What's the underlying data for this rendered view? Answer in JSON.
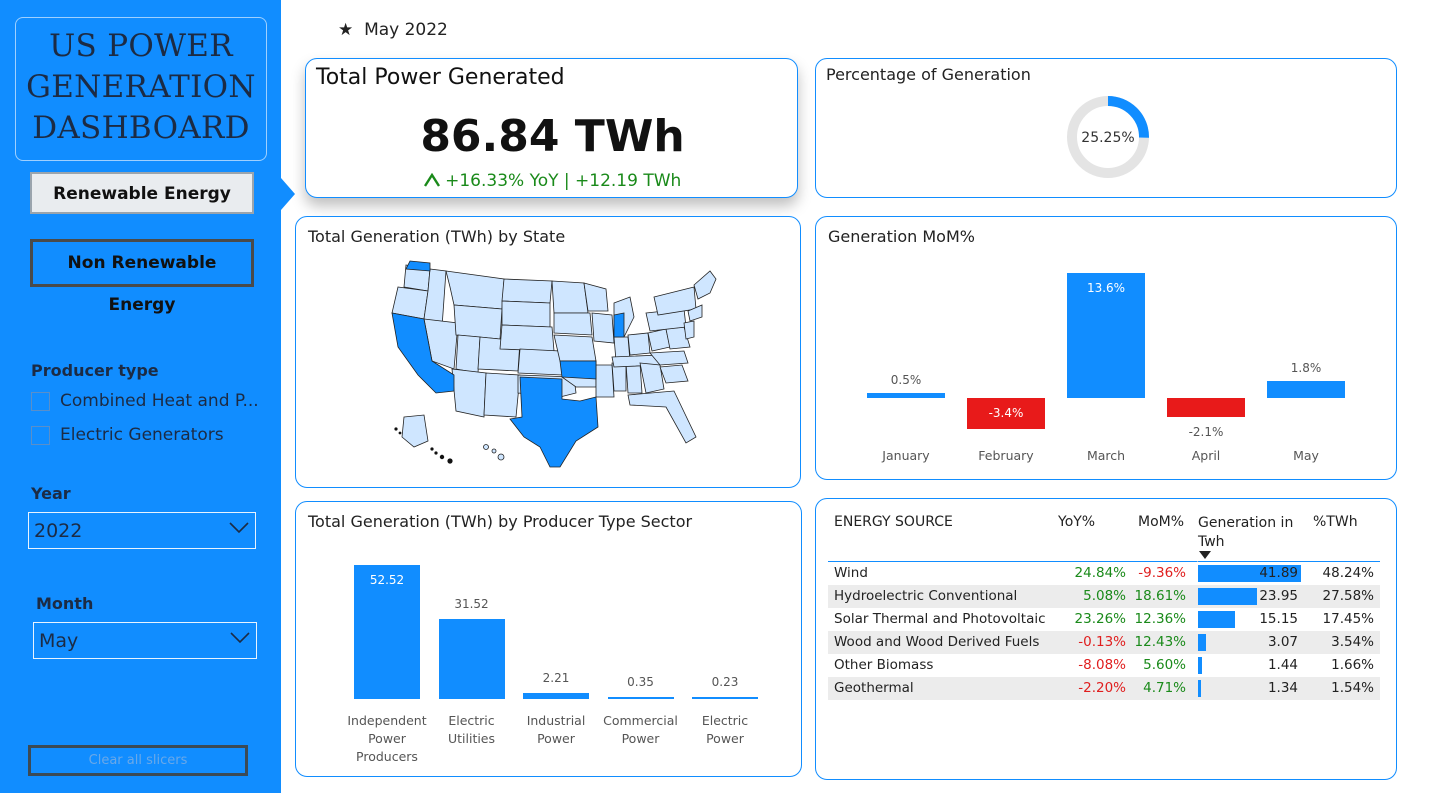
{
  "sidebar": {
    "title_lines": [
      "US POWER",
      "GENERATION",
      "DASHBOARD"
    ],
    "buttons": {
      "renewable": "Renewable Energy",
      "non_renewable": "Non Renewable Energy"
    },
    "producer_type": {
      "label": "Producer type",
      "options": [
        "Combined Heat and P...",
        "Electric Generators"
      ]
    },
    "year": {
      "label": "Year",
      "value": "2022"
    },
    "month": {
      "label": "Month",
      "value": "May"
    },
    "clear_label": "Clear all slicers"
  },
  "header": {
    "star": "★",
    "date": "May 2022"
  },
  "kpi": {
    "title": "Total Power Generated",
    "value": "86.84 TWh",
    "delta": "+16.33% YoY | +12.19 TWh"
  },
  "percentage": {
    "title": "Percentage of Generation",
    "value": "25.25%",
    "fraction": 0.2525
  },
  "map": {
    "title": "Total Generation (TWh) by State"
  },
  "mom": {
    "title": "Generation MoM%",
    "chart_data": {
      "type": "bar",
      "categories": [
        "January",
        "February",
        "March",
        "April",
        "May"
      ],
      "values": [
        0.5,
        -3.4,
        13.6,
        -2.1,
        1.8
      ],
      "labels": [
        "0.5%",
        "-3.4%",
        "13.6%",
        "-2.1%",
        "1.8%"
      ]
    }
  },
  "sector": {
    "title": "Total Generation (TWh) by Producer Type Sector",
    "chart_data": {
      "type": "bar",
      "categories": [
        [
          "Independent",
          "Power",
          "Producers"
        ],
        [
          "Electric",
          "Utilities"
        ],
        [
          "Industrial",
          "Power"
        ],
        [
          "Commercial",
          "Power"
        ],
        [
          "Electric",
          "Power"
        ]
      ],
      "values": [
        52.52,
        31.52,
        2.21,
        0.35,
        0.23
      ],
      "labels": [
        "52.52",
        "31.52",
        "2.21",
        "0.35",
        "0.23"
      ]
    }
  },
  "table": {
    "headers": [
      "ENERGY SOURCE",
      "YoY%",
      "MoM%",
      "Generation in Twh",
      "%TWh"
    ],
    "rows": [
      {
        "source": "Wind",
        "yoy": "24.84%",
        "mom": "-9.36%",
        "gen": "41.89",
        "gen_value": 41.89,
        "pct": "48.24%"
      },
      {
        "source": "Hydroelectric Conventional",
        "yoy": "5.08%",
        "mom": "18.61%",
        "gen": "23.95",
        "gen_value": 23.95,
        "pct": "27.58%"
      },
      {
        "source": "Solar Thermal and Photovoltaic",
        "yoy": "23.26%",
        "mom": "12.36%",
        "gen": "15.15",
        "gen_value": 15.15,
        "pct": "17.45%"
      },
      {
        "source": "Wood and Wood Derived Fuels",
        "yoy": "-0.13%",
        "mom": "12.43%",
        "gen": "3.07",
        "gen_value": 3.07,
        "pct": "3.54%"
      },
      {
        "source": "Other Biomass",
        "yoy": "-8.08%",
        "mom": "5.60%",
        "gen": "1.44",
        "gen_value": 1.44,
        "pct": "1.66%"
      },
      {
        "source": "Geothermal",
        "yoy": "-2.20%",
        "mom": "4.71%",
        "gen": "1.34",
        "gen_value": 1.34,
        "pct": "1.54%"
      }
    ]
  },
  "colors": {
    "accent": "#118DFF",
    "negative": "#E81A1A",
    "positive": "#1A8A1A",
    "map_fill": "#CFE6FF",
    "map_highlight": "#118DFF"
  }
}
